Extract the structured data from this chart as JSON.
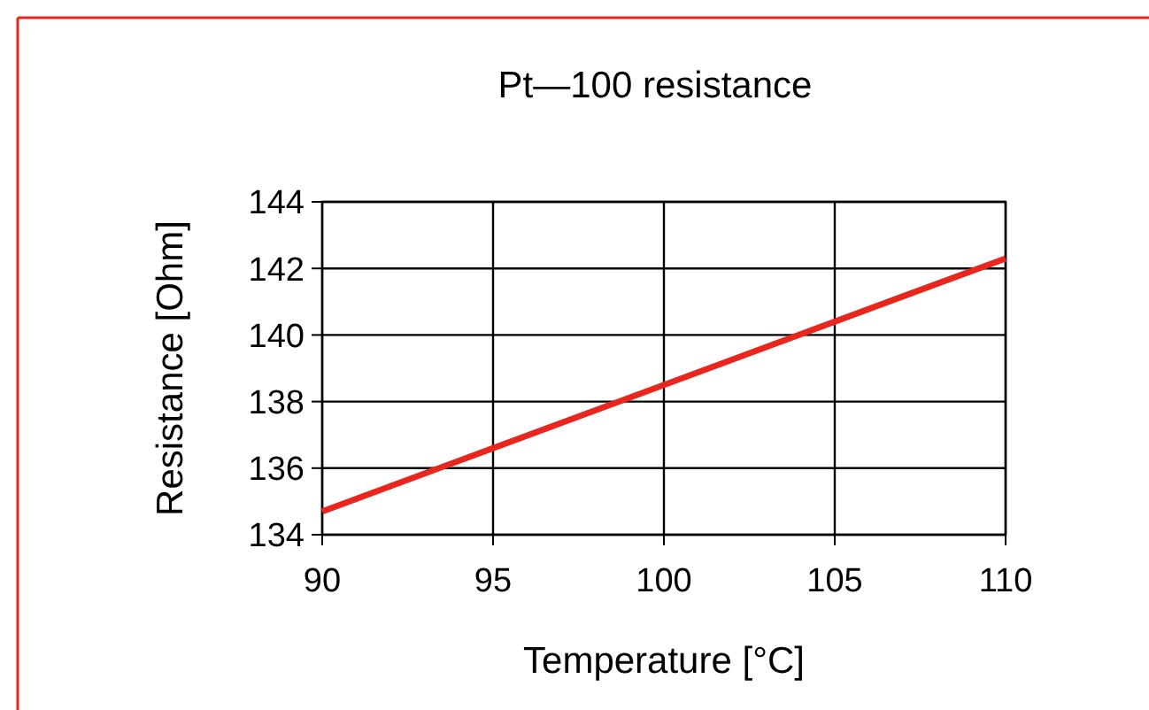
{
  "chart_data": {
    "type": "line",
    "title": "Pt—100 resistance",
    "xlabel": "Temperature [°C]",
    "ylabel": "Resistance [Ohm]",
    "x": [
      90,
      110
    ],
    "series": [
      {
        "color": "#e8261e",
        "values": [
          134.7,
          142.3
        ]
      }
    ],
    "xlim": [
      90,
      110
    ],
    "xticks": [
      90,
      95,
      100,
      105,
      110
    ],
    "ylim": [
      134,
      144
    ],
    "yticks": [
      134,
      136,
      138,
      140,
      142,
      144
    ],
    "grid": true,
    "marker": "none",
    "line_style": "solid"
  }
}
